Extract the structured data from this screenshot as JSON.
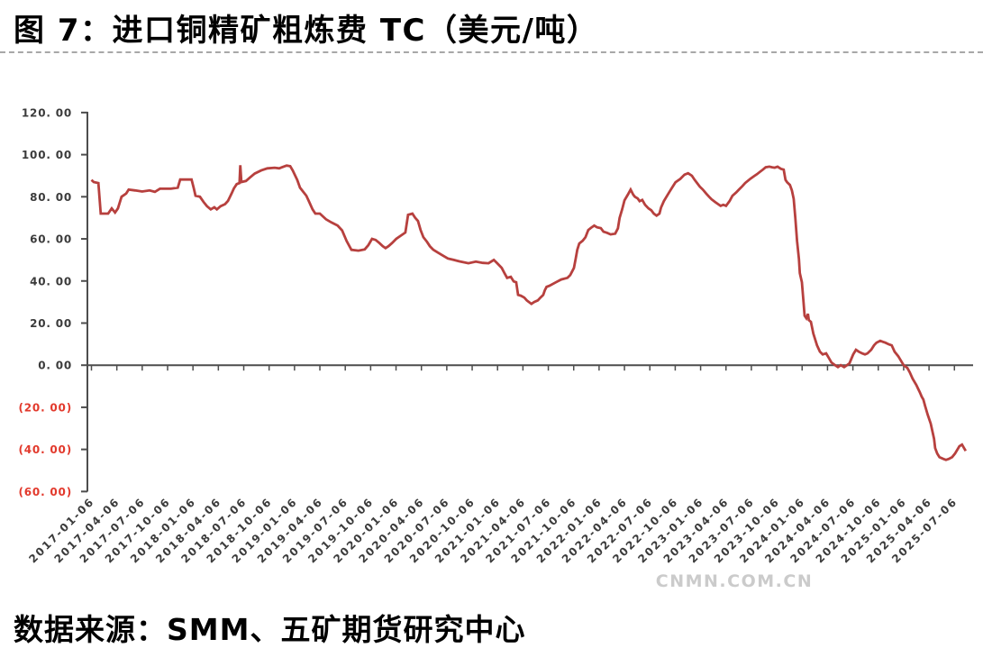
{
  "title": "图 7：进口铜精矿粗炼费 TC（美元/吨）",
  "source_note": "数据来源：SMM、五矿期货研究中心",
  "watermark": "CNMN.COM.CN",
  "chart_data": {
    "type": "line",
    "title": "进口铜精矿粗炼费TC",
    "unit": "美元/吨",
    "line_color": "#b7403e",
    "axis_color": "#4d4d4d",
    "tick_label_color": "#3b3b3b",
    "negative_label_color": "#e2392c",
    "ylim": [
      -60,
      120
    ],
    "y_ticks": [
      120,
      100,
      80,
      60,
      40,
      20,
      0,
      -20,
      -40,
      -60
    ],
    "y_tick_labels": [
      "120. 00",
      "100. 00",
      "80. 00",
      "60. 00",
      "40. 00",
      "20. 00",
      "0. 00",
      "(20. 00)",
      "(40. 00)",
      "(60. 00)"
    ],
    "x_tick_labels": [
      "2017-01-06",
      "2017-04-06",
      "2017-07-06",
      "2017-10-06",
      "2018-01-06",
      "2018-04-06",
      "2018-07-06",
      "2018-10-06",
      "2019-01-06",
      "2019-04-06",
      "2019-07-06",
      "2019-10-06",
      "2020-01-06",
      "2020-04-06",
      "2020-07-06",
      "2020-10-06",
      "2021-01-06",
      "2021-04-06",
      "2021-07-06",
      "2021-10-06",
      "2022-01-06",
      "2022-04-06",
      "2022-07-06",
      "2022-10-06",
      "2023-01-06",
      "2023-04-06",
      "2023-07-06",
      "2023-10-06",
      "2024-01-06",
      "2024-04-06",
      "2024-07-06",
      "2024-10-06",
      "2025-01-06",
      "2025-04-06",
      "2025-07-06"
    ],
    "points": [
      [
        "2017-01-06",
        88
      ],
      [
        "2017-01-14",
        87
      ],
      [
        "2017-01-31",
        86.5
      ],
      [
        "2017-02-09",
        72
      ],
      [
        "2017-03-05",
        72
      ],
      [
        "2017-03-18",
        74.5
      ],
      [
        "2017-03-30",
        72.5
      ],
      [
        "2017-04-10",
        74.5
      ],
      [
        "2017-04-23",
        80
      ],
      [
        "2017-05-09",
        81.5
      ],
      [
        "2017-05-18",
        83.4
      ],
      [
        "2017-06-11",
        83
      ],
      [
        "2017-07-06",
        82.5
      ],
      [
        "2017-08-02",
        83
      ],
      [
        "2017-08-21",
        82.3
      ],
      [
        "2017-09-09",
        83.8
      ],
      [
        "2017-10-18",
        83.8
      ],
      [
        "2017-11-12",
        84.3
      ],
      [
        "2017-11-21",
        88.2
      ],
      [
        "2018-01-01",
        88.2
      ],
      [
        "2018-01-09",
        84
      ],
      [
        "2018-01-15",
        80.5
      ],
      [
        "2018-01-31",
        80
      ],
      [
        "2018-02-14",
        77.5
      ],
      [
        "2018-02-26",
        75.5
      ],
      [
        "2018-03-09",
        74
      ],
      [
        "2018-03-22",
        75
      ],
      [
        "2018-03-31",
        74
      ],
      [
        "2018-04-14",
        75.5
      ],
      [
        "2018-04-30",
        76.5
      ],
      [
        "2018-05-10",
        78
      ],
      [
        "2018-05-23",
        81.5
      ],
      [
        "2018-06-01",
        84
      ],
      [
        "2018-06-11",
        86
      ],
      [
        "2018-06-21",
        86.5
      ],
      [
        "2018-06-24",
        95
      ],
      [
        "2018-06-28",
        87
      ],
      [
        "2018-07-14",
        87.5
      ],
      [
        "2018-07-27",
        89
      ],
      [
        "2018-08-15",
        91
      ],
      [
        "2018-09-08",
        92.5
      ],
      [
        "2018-09-30",
        93.5
      ],
      [
        "2018-10-26",
        93.8
      ],
      [
        "2018-11-12",
        93.5
      ],
      [
        "2018-11-22",
        94
      ],
      [
        "2018-12-08",
        94.8
      ],
      [
        "2018-12-21",
        94.5
      ],
      [
        "2018-12-30",
        92.5
      ],
      [
        "2019-01-16",
        88
      ],
      [
        "2019-01-26",
        84.3
      ],
      [
        "2019-02-08",
        82.2
      ],
      [
        "2019-02-18",
        80.5
      ],
      [
        "2019-02-27",
        78
      ],
      [
        "2019-03-10",
        74
      ],
      [
        "2019-03-20",
        72
      ],
      [
        "2019-04-06",
        72
      ],
      [
        "2019-04-28",
        69.3
      ],
      [
        "2019-05-17",
        67.8
      ],
      [
        "2019-06-09",
        66.3
      ],
      [
        "2019-06-25",
        64
      ],
      [
        "2019-07-11",
        59
      ],
      [
        "2019-07-28",
        54.8
      ],
      [
        "2019-08-23",
        54.4
      ],
      [
        "2019-09-15",
        55
      ],
      [
        "2019-09-28",
        57
      ],
      [
        "2019-10-11",
        60
      ],
      [
        "2019-10-24",
        59.5
      ],
      [
        "2019-11-07",
        58
      ],
      [
        "2019-11-19",
        56.5
      ],
      [
        "2019-11-29",
        55.6
      ],
      [
        "2019-12-09",
        56.5
      ],
      [
        "2019-12-22",
        58
      ],
      [
        "2020-01-07",
        60
      ],
      [
        "2020-01-23",
        61.5
      ],
      [
        "2020-02-09",
        63
      ],
      [
        "2020-02-19",
        71.4
      ],
      [
        "2020-03-04",
        72
      ],
      [
        "2020-03-14",
        70
      ],
      [
        "2020-03-24",
        68.5
      ],
      [
        "2020-04-03",
        64.2
      ],
      [
        "2020-04-13",
        60.8
      ],
      [
        "2020-04-26",
        58.6
      ],
      [
        "2020-05-06",
        56.5
      ],
      [
        "2020-05-18",
        54.9
      ],
      [
        "2020-06-04",
        53.5
      ],
      [
        "2020-06-21",
        52.2
      ],
      [
        "2020-07-10",
        50.7
      ],
      [
        "2020-08-01",
        50
      ],
      [
        "2020-08-25",
        49.2
      ],
      [
        "2020-09-23",
        48.4
      ],
      [
        "2020-10-19",
        49.2
      ],
      [
        "2020-11-14",
        48.6
      ],
      [
        "2020-12-04",
        48.4
      ],
      [
        "2020-12-23",
        50
      ],
      [
        "2021-01-05",
        48.4
      ],
      [
        "2021-01-21",
        46.2
      ],
      [
        "2021-01-31",
        43.7
      ],
      [
        "2021-02-10",
        41.5
      ],
      [
        "2021-02-23",
        42
      ],
      [
        "2021-03-03",
        39.8
      ],
      [
        "2021-03-12",
        39.4
      ],
      [
        "2021-03-19",
        33.4
      ],
      [
        "2021-03-29",
        33
      ],
      [
        "2021-04-11",
        32.1
      ],
      [
        "2021-04-20",
        30.8
      ],
      [
        "2021-05-06",
        29.1
      ],
      [
        "2021-05-16",
        30
      ],
      [
        "2021-05-29",
        30.8
      ],
      [
        "2021-06-08",
        32.1
      ],
      [
        "2021-06-18",
        33.4
      ],
      [
        "2021-06-24",
        35.6
      ],
      [
        "2021-06-30",
        37.2
      ],
      [
        "2021-07-10",
        37.7
      ],
      [
        "2021-08-03",
        39.4
      ],
      [
        "2021-08-22",
        40.7
      ],
      [
        "2021-09-14",
        41.5
      ],
      [
        "2021-09-24",
        42.8
      ],
      [
        "2021-10-07",
        46.2
      ],
      [
        "2021-10-13",
        50.5
      ],
      [
        "2021-10-19",
        54.8
      ],
      [
        "2021-10-26",
        57.8
      ],
      [
        "2021-11-08",
        59.1
      ],
      [
        "2021-11-18",
        60.8
      ],
      [
        "2021-11-28",
        64.2
      ],
      [
        "2021-12-10",
        65.5
      ],
      [
        "2021-12-19",
        66.3
      ],
      [
        "2021-12-29",
        65.5
      ],
      [
        "2022-01-12",
        65.1
      ],
      [
        "2022-01-22",
        63.4
      ],
      [
        "2022-02-04",
        62.9
      ],
      [
        "2022-02-17",
        62.1
      ],
      [
        "2022-03-03",
        62.5
      ],
      [
        "2022-03-13",
        65
      ],
      [
        "2022-03-19",
        70
      ],
      [
        "2022-03-28",
        74
      ],
      [
        "2022-04-06",
        78.3
      ],
      [
        "2022-04-18",
        81
      ],
      [
        "2022-04-28",
        83.4
      ],
      [
        "2022-05-07",
        81
      ],
      [
        "2022-05-13",
        80
      ],
      [
        "2022-05-23",
        79.2
      ],
      [
        "2022-05-30",
        77.9
      ],
      [
        "2022-06-09",
        78.5
      ],
      [
        "2022-06-19",
        76.2
      ],
      [
        "2022-07-01",
        74.5
      ],
      [
        "2022-07-11",
        73.6
      ],
      [
        "2022-07-20",
        72
      ],
      [
        "2022-07-30",
        71
      ],
      [
        "2022-08-10",
        72
      ],
      [
        "2022-08-16",
        74.9
      ],
      [
        "2022-08-26",
        77.9
      ],
      [
        "2022-09-05",
        80
      ],
      [
        "2022-09-15",
        82.2
      ],
      [
        "2022-09-27",
        84.7
      ],
      [
        "2022-10-07",
        86.9
      ],
      [
        "2022-10-24",
        88.5
      ],
      [
        "2022-11-09",
        90.5
      ],
      [
        "2022-11-22",
        91.2
      ],
      [
        "2022-12-05",
        90
      ],
      [
        "2022-12-15",
        88
      ],
      [
        "2022-12-24",
        86.5
      ],
      [
        "2023-01-03",
        84.8
      ],
      [
        "2023-01-14",
        83.4
      ],
      [
        "2023-01-26",
        81.5
      ],
      [
        "2023-02-06",
        80
      ],
      [
        "2023-02-15",
        78.8
      ],
      [
        "2023-02-28",
        77.5
      ],
      [
        "2023-03-08",
        76.5
      ],
      [
        "2023-03-17",
        75.7
      ],
      [
        "2023-03-27",
        76.2
      ],
      [
        "2023-04-06",
        75.7
      ],
      [
        "2023-04-19",
        78
      ],
      [
        "2023-04-29",
        80.5
      ],
      [
        "2023-05-12",
        82
      ],
      [
        "2023-05-22",
        83.4
      ],
      [
        "2023-06-04",
        85
      ],
      [
        "2023-06-14",
        86.5
      ],
      [
        "2023-06-23",
        87.5
      ],
      [
        "2023-07-03",
        88.6
      ],
      [
        "2023-07-16",
        89.8
      ],
      [
        "2023-07-26",
        90.7
      ],
      [
        "2023-08-08",
        92
      ],
      [
        "2023-08-17",
        92.9
      ],
      [
        "2023-08-27",
        94
      ],
      [
        "2023-09-10",
        94.3
      ],
      [
        "2023-09-20",
        94
      ],
      [
        "2023-09-29",
        93.8
      ],
      [
        "2023-10-09",
        94.3
      ],
      [
        "2023-10-21",
        93.3
      ],
      [
        "2023-10-31",
        92.9
      ],
      [
        "2023-11-07",
        88
      ],
      [
        "2023-11-13",
        86.9
      ],
      [
        "2023-11-23",
        85.6
      ],
      [
        "2023-11-30",
        83
      ],
      [
        "2023-12-06",
        79
      ],
      [
        "2023-12-12",
        70
      ],
      [
        "2023-12-18",
        59.1
      ],
      [
        "2023-12-25",
        50.5
      ],
      [
        "2023-12-28",
        43.7
      ],
      [
        "2024-01-05",
        39.4
      ],
      [
        "2024-01-11",
        30
      ],
      [
        "2024-01-15",
        23.5
      ],
      [
        "2024-01-21",
        22.3
      ],
      [
        "2024-01-27",
        24.4
      ],
      [
        "2024-01-30",
        21.4
      ],
      [
        "2024-02-07",
        20.6
      ],
      [
        "2024-02-16",
        15
      ],
      [
        "2024-02-29",
        9.4
      ],
      [
        "2024-03-09",
        6.4
      ],
      [
        "2024-03-19",
        5.1
      ],
      [
        "2024-04-01",
        5.6
      ],
      [
        "2024-04-11",
        3.4
      ],
      [
        "2024-04-20",
        1.3
      ],
      [
        "2024-05-03",
        0
      ],
      [
        "2024-05-13",
        -0.9
      ],
      [
        "2024-05-23",
        0
      ],
      [
        "2024-06-05",
        -0.9
      ],
      [
        "2024-06-15",
        0
      ],
      [
        "2024-06-24",
        0.9
      ],
      [
        "2024-07-07",
        5.1
      ],
      [
        "2024-07-17",
        7.3
      ],
      [
        "2024-07-27",
        6.4
      ],
      [
        "2024-08-09",
        5.6
      ],
      [
        "2024-08-19",
        5.1
      ],
      [
        "2024-08-28",
        5.6
      ],
      [
        "2024-09-11",
        7.3
      ],
      [
        "2024-09-21",
        9.4
      ],
      [
        "2024-09-30",
        10.7
      ],
      [
        "2024-10-13",
        11.6
      ],
      [
        "2024-10-23",
        11.1
      ],
      [
        "2024-11-01",
        10.7
      ],
      [
        "2024-11-14",
        9.9
      ],
      [
        "2024-11-24",
        9.4
      ],
      [
        "2024-12-04",
        6.4
      ],
      [
        "2024-12-17",
        4.3
      ],
      [
        "2024-12-27",
        2.1
      ],
      [
        "2025-01-06",
        0
      ],
      [
        "2025-01-19",
        -1.3
      ],
      [
        "2025-01-28",
        -3.4
      ],
      [
        "2025-02-08",
        -6.4
      ],
      [
        "2025-02-21",
        -9.4
      ],
      [
        "2025-03-03",
        -12.8
      ],
      [
        "2025-03-10",
        -15
      ],
      [
        "2025-03-16",
        -16.3
      ],
      [
        "2025-03-22",
        -19.3
      ],
      [
        "2025-04-01",
        -23.5
      ],
      [
        "2025-04-12",
        -27.8
      ],
      [
        "2025-04-18",
        -31.3
      ],
      [
        "2025-04-24",
        -35
      ],
      [
        "2025-04-28",
        -39.4
      ],
      [
        "2025-05-05",
        -42
      ],
      [
        "2025-05-13",
        -43.7
      ],
      [
        "2025-05-27",
        -44.5
      ],
      [
        "2025-06-06",
        -45
      ],
      [
        "2025-06-16",
        -44.5
      ],
      [
        "2025-06-28",
        -43.7
      ],
      [
        "2025-07-08",
        -42
      ],
      [
        "2025-07-24",
        -38.5
      ],
      [
        "2025-08-03",
        -37.7
      ],
      [
        "2025-08-16",
        -40.7
      ]
    ]
  }
}
